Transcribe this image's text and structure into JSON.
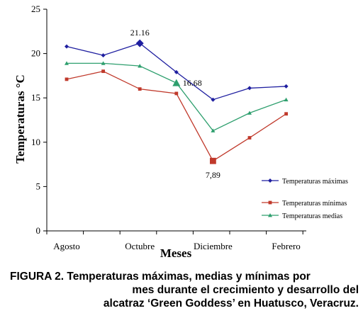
{
  "chart_data": {
    "type": "line",
    "title": "",
    "xlabel": "Meses",
    "ylabel": "Temperaturas °C",
    "categories": [
      "Agosto",
      "",
      "Octubre",
      "",
      "Diciembre",
      "",
      "Febrero"
    ],
    "ylim": [
      0,
      25
    ],
    "yticks": [
      0,
      5,
      10,
      15,
      20,
      25
    ],
    "grid": false,
    "legend_position": "right",
    "series": [
      {
        "name": "Temperaturas máximas",
        "color": "#1f1fa0",
        "marker": "diamond",
        "values": [
          20.8,
          19.8,
          21.16,
          17.9,
          14.8,
          16.1,
          16.3
        ]
      },
      {
        "name": "Temperaturas mínimas",
        "color": "#c0392b",
        "marker": "square",
        "values": [
          17.1,
          18.0,
          16.0,
          15.5,
          7.89,
          10.5,
          13.2
        ]
      },
      {
        "name": "Temperaturas medias",
        "color": "#2e9f6e",
        "marker": "triangle",
        "values": [
          18.9,
          18.9,
          18.6,
          16.68,
          11.3,
          13.3,
          14.8
        ]
      }
    ],
    "annotations": [
      {
        "series": 0,
        "index": 2,
        "text": "21.16"
      },
      {
        "series": 2,
        "index": 3,
        "text": "16.68"
      },
      {
        "series": 1,
        "index": 4,
        "text": "7,89"
      }
    ]
  },
  "caption": {
    "line1": "FIGURA 2. Temperaturas máximas, medias y mínimas por",
    "line2": "mes durante el crecimiento y desarrollo del",
    "line3": "alcatraz ‘Green Goddess’ en Huatusco, Veracruz."
  }
}
